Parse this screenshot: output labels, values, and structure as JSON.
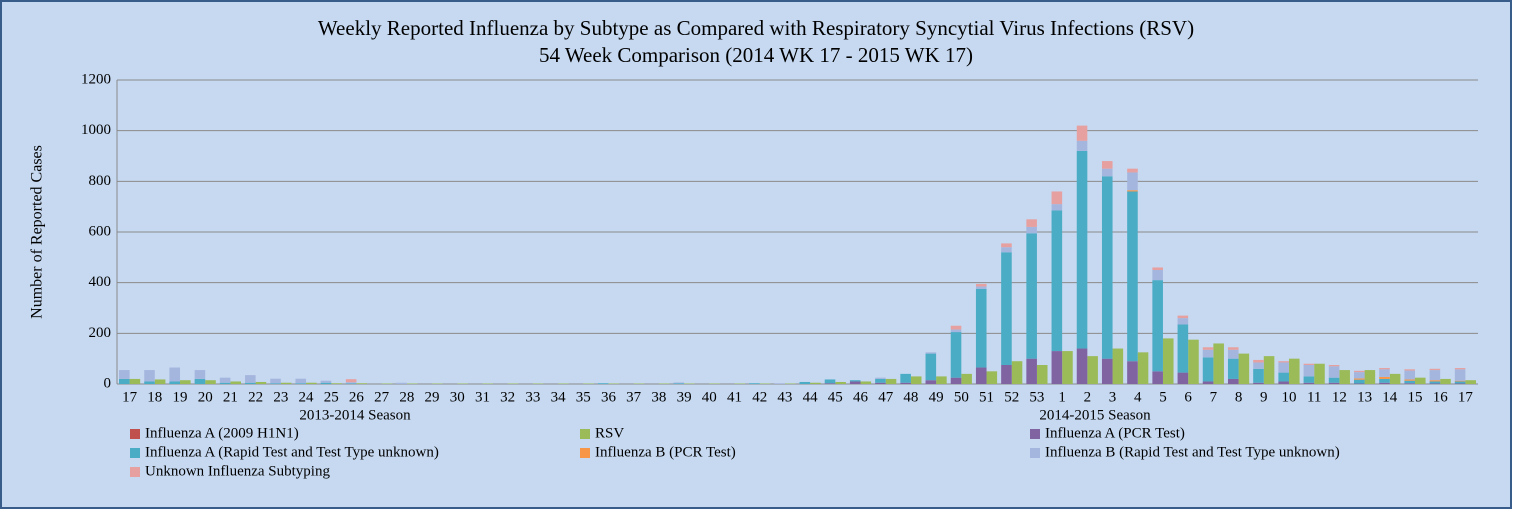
{
  "chart_data": {
    "type": "bar",
    "title": "Weekly Reported Influenza by Subtype as Compared with Respiratory Syncytial Virus Infections (RSV)",
    "subtitle": "54 Week Comparison (2014 WK 17 - 2015 WK 17)",
    "y_label": "Number of Reported Cases",
    "season_labels": [
      "2013-2014 Season",
      "2014-2015 Season"
    ],
    "categories": [
      "17",
      "18",
      "19",
      "20",
      "21",
      "22",
      "23",
      "24",
      "25",
      "26",
      "27",
      "28",
      "29",
      "30",
      "31",
      "32",
      "33",
      "34",
      "35",
      "36",
      "37",
      "38",
      "39",
      "40",
      "41",
      "42",
      "43",
      "44",
      "45",
      "46",
      "47",
      "48",
      "49",
      "50",
      "51",
      "52",
      "53",
      "1",
      "2",
      "3",
      "4",
      "5",
      "6",
      "7",
      "8",
      "9",
      "10",
      "11",
      "12",
      "13",
      "14",
      "15",
      "16",
      "17"
    ],
    "ylim": [
      0,
      1200
    ],
    "yticks": [
      0,
      200,
      400,
      600,
      800,
      1000,
      1200
    ],
    "grid": true,
    "legend": "bottom",
    "series": [
      {
        "name": "Influenza A (2009 H1N1)",
        "color": "#c0504d",
        "stack": "influenza",
        "values": [
          0,
          0,
          0,
          0,
          0,
          0,
          0,
          0,
          0,
          0,
          0,
          0,
          0,
          0,
          0,
          0,
          0,
          0,
          0,
          0,
          0,
          0,
          0,
          0,
          0,
          0,
          0,
          0,
          0,
          0,
          0,
          0,
          0,
          0,
          0,
          0,
          0,
          0,
          0,
          0,
          0,
          0,
          0,
          0,
          0,
          0,
          0,
          0,
          0,
          0,
          0,
          0,
          0,
          0
        ]
      },
      {
        "name": "RSV",
        "color": "#9bbb59",
        "stack": "rsv",
        "values": [
          20,
          18,
          15,
          15,
          10,
          8,
          5,
          5,
          3,
          3,
          2,
          2,
          2,
          2,
          2,
          2,
          2,
          2,
          2,
          2,
          2,
          2,
          2,
          2,
          2,
          2,
          2,
          5,
          8,
          10,
          20,
          30,
          30,
          40,
          50,
          90,
          75,
          130,
          110,
          140,
          125,
          180,
          175,
          160,
          120,
          110,
          100,
          80,
          55,
          55,
          40,
          25,
          20,
          15
        ]
      },
      {
        "name": "Influenza A (PCR Test)",
        "color": "#8064a2",
        "stack": "influenza",
        "values": [
          0,
          0,
          0,
          0,
          0,
          0,
          0,
          0,
          0,
          0,
          0,
          0,
          0,
          0,
          0,
          0,
          0,
          0,
          0,
          0,
          0,
          0,
          0,
          0,
          0,
          0,
          0,
          0,
          3,
          10,
          5,
          5,
          15,
          25,
          65,
          75,
          100,
          130,
          140,
          100,
          90,
          50,
          45,
          10,
          20,
          5,
          10,
          5,
          5,
          2,
          5,
          3,
          2,
          2
        ]
      },
      {
        "name": "Influenza A (Rapid Test and Test Type unknown)",
        "color": "#4bacc6",
        "stack": "influenza",
        "values": [
          20,
          10,
          10,
          20,
          5,
          5,
          3,
          3,
          5,
          2,
          0,
          0,
          0,
          0,
          0,
          0,
          0,
          0,
          0,
          3,
          0,
          0,
          3,
          0,
          0,
          3,
          0,
          8,
          15,
          5,
          15,
          35,
          105,
          180,
          310,
          445,
          495,
          555,
          780,
          720,
          670,
          360,
          190,
          95,
          80,
          55,
          35,
          25,
          20,
          15,
          15,
          10,
          8,
          8
        ]
      },
      {
        "name": "Influenza B (PCR Test)",
        "color": "#f79646",
        "stack": "influenza",
        "values": [
          0,
          0,
          0,
          0,
          0,
          0,
          0,
          0,
          0,
          0,
          0,
          0,
          0,
          0,
          0,
          0,
          0,
          0,
          0,
          0,
          0,
          0,
          0,
          0,
          0,
          0,
          0,
          0,
          0,
          0,
          0,
          0,
          0,
          0,
          0,
          0,
          0,
          0,
          0,
          0,
          5,
          0,
          0,
          0,
          0,
          0,
          0,
          0,
          0,
          5,
          8,
          5,
          5,
          3
        ]
      },
      {
        "name": "Influenza B (Rapid Test and Test Type unknown)",
        "color": "#a5b6de",
        "stack": "influenza",
        "values": [
          35,
          45,
          55,
          35,
          20,
          30,
          18,
          18,
          8,
          5,
          0,
          5,
          0,
          0,
          0,
          0,
          0,
          0,
          0,
          0,
          0,
          0,
          3,
          0,
          0,
          0,
          3,
          0,
          0,
          0,
          5,
          0,
          5,
          10,
          10,
          20,
          25,
          25,
          40,
          30,
          70,
          40,
          25,
          30,
          35,
          25,
          40,
          45,
          45,
          25,
          30,
          35,
          40,
          45
        ]
      },
      {
        "name": "Unknown Influenza Subtyping",
        "color": "#e6a0a0",
        "stack": "influenza",
        "values": [
          0,
          0,
          0,
          0,
          0,
          0,
          0,
          0,
          0,
          12,
          0,
          0,
          0,
          0,
          0,
          0,
          0,
          0,
          0,
          0,
          0,
          0,
          0,
          0,
          0,
          0,
          0,
          0,
          0,
          0,
          0,
          0,
          0,
          15,
          10,
          15,
          30,
          50,
          60,
          30,
          15,
          10,
          10,
          10,
          10,
          10,
          5,
          5,
          5,
          5,
          5,
          5,
          5,
          5
        ]
      }
    ]
  }
}
